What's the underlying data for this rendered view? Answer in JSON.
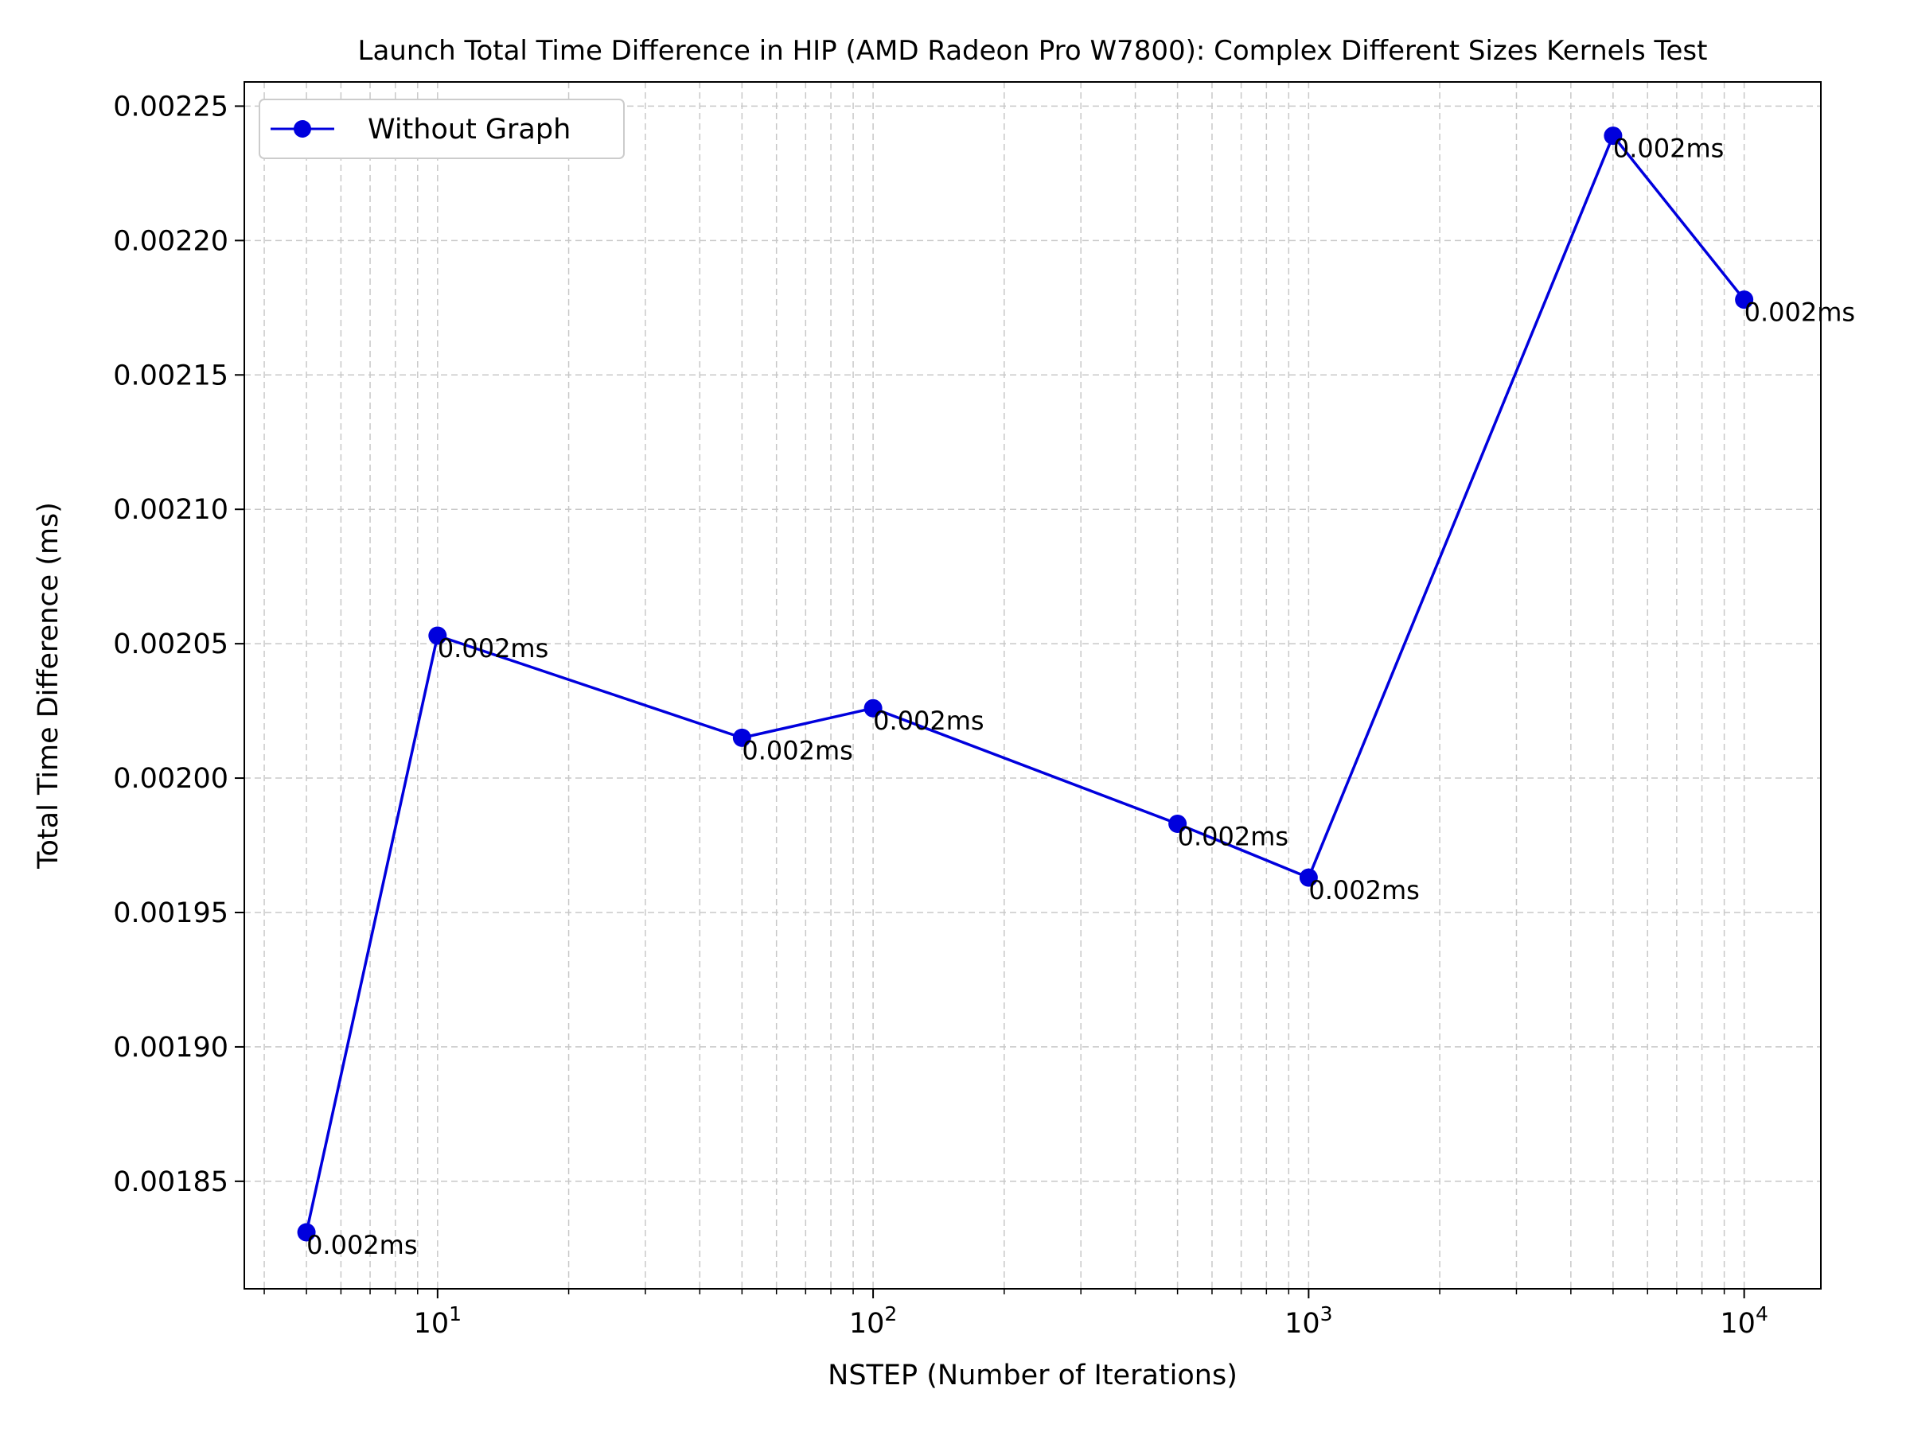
{
  "chart_data": {
    "type": "line",
    "title": "Launch Total Time Difference in HIP (AMD Radeon Pro W7800): Complex Different Sizes Kernels Test",
    "xlabel": "NSTEP (Number of Iterations)",
    "ylabel": "Total Time Difference (ms)",
    "xscale": "log",
    "xlim": [
      3.6,
      15000
    ],
    "ylim": [
      0.00181,
      0.002259
    ],
    "grid": true,
    "legend_position": "top-left",
    "x_ticks": [
      {
        "base": "10",
        "exp": "1"
      },
      {
        "base": "10",
        "exp": "2"
      },
      {
        "base": "10",
        "exp": "3"
      },
      {
        "base": "10",
        "exp": "4"
      }
    ],
    "y_ticks": [
      "0.00185",
      "0.00190",
      "0.00195",
      "0.00200",
      "0.00205",
      "0.00210",
      "0.00215",
      "0.00220",
      "0.00225"
    ],
    "series": [
      {
        "name": "Without Graph",
        "color": "#0000dd",
        "marker": "circle",
        "x": [
          5,
          10,
          50,
          100,
          500,
          1000,
          5000,
          10000
        ],
        "y": [
          0.001831,
          0.002053,
          0.002015,
          0.002026,
          0.001983,
          0.001963,
          0.002239,
          0.002178
        ],
        "labels": [
          "0.002ms",
          "0.002ms",
          "0.002ms",
          "0.002ms",
          "0.002ms",
          "0.002ms",
          "0.002ms",
          "0.002ms"
        ]
      }
    ]
  }
}
